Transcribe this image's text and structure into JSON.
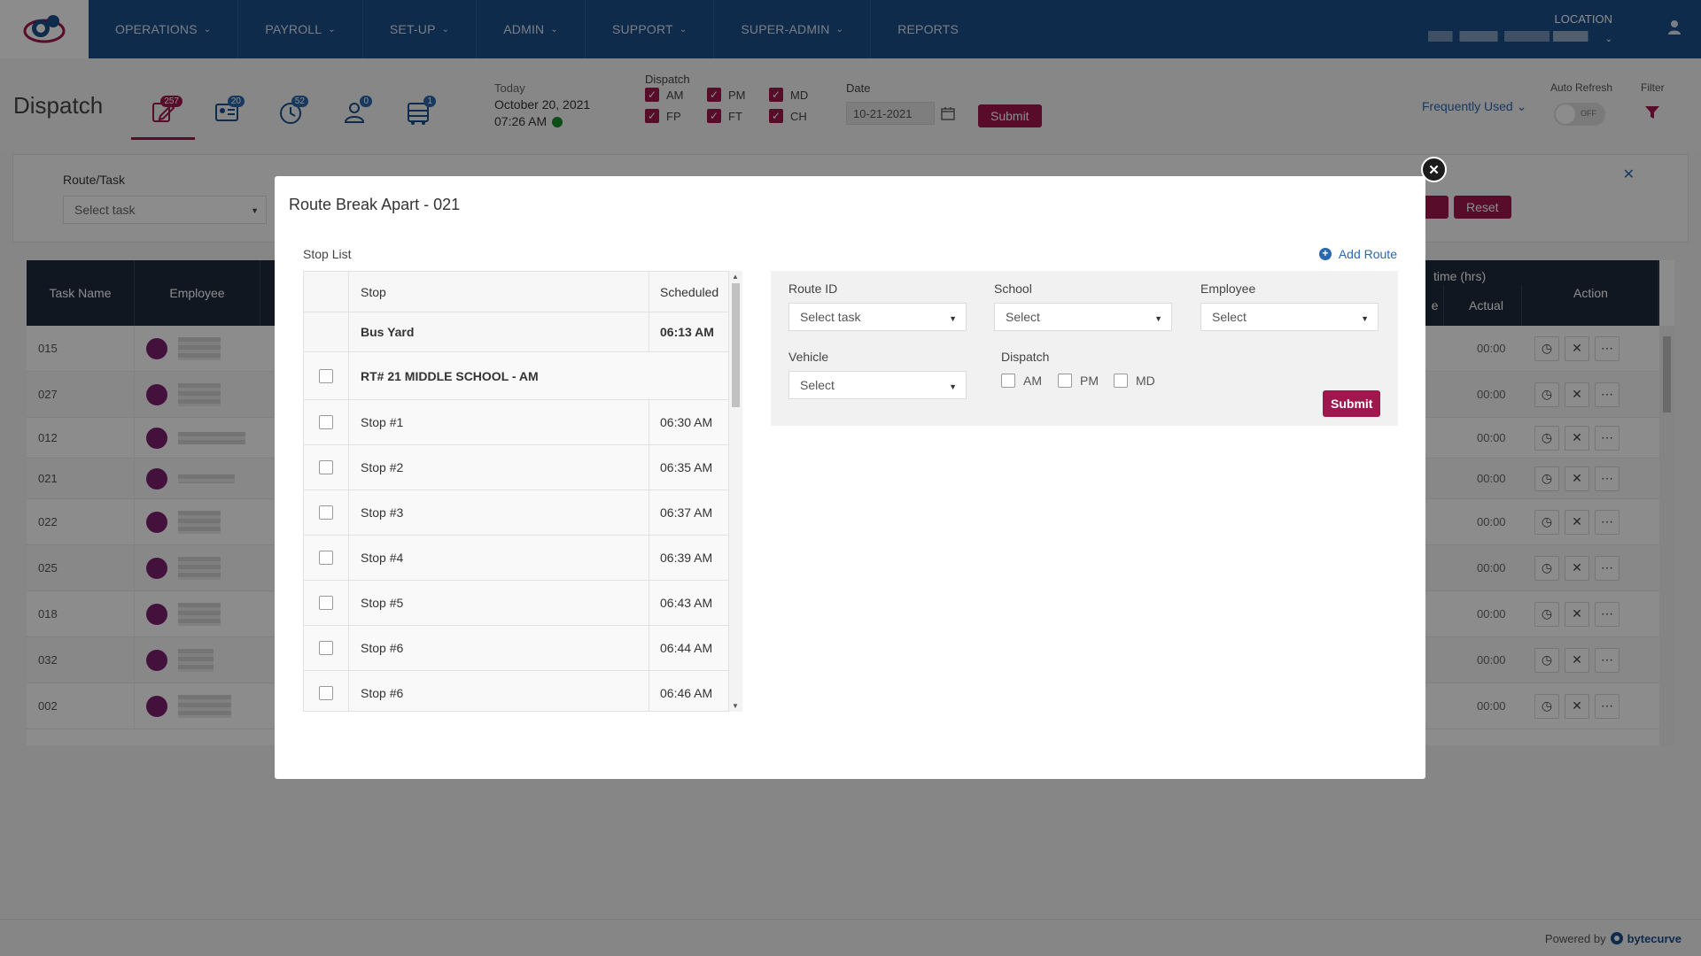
{
  "nav": {
    "items": [
      {
        "label": "OPERATIONS",
        "has_dropdown": true
      },
      {
        "label": "PAYROLL",
        "has_dropdown": true
      },
      {
        "label": "SET-UP",
        "has_dropdown": true
      },
      {
        "label": "ADMIN",
        "has_dropdown": true
      },
      {
        "label": "SUPPORT",
        "has_dropdown": true
      },
      {
        "label": "SUPER-ADMIN",
        "has_dropdown": true
      },
      {
        "label": "REPORTS",
        "has_dropdown": false
      }
    ],
    "location_label": "LOCATION"
  },
  "header": {
    "title": "Dispatch",
    "tab_badges": [
      "257",
      "20",
      "52",
      "0",
      "1"
    ],
    "today_label": "Today",
    "today_date": "October 20, 2021",
    "today_time": "07:26 AM",
    "dispatch_label": "Dispatch",
    "dispatch_options": [
      "AM",
      "PM",
      "MD",
      "FP",
      "FT",
      "CH"
    ],
    "date_label": "Date",
    "date_value": "10-21-2021",
    "submit_label": "Submit",
    "frequently_used": "Frequently Used",
    "auto_refresh_label": "Auto Refresh",
    "auto_refresh_state": "OFF",
    "filter_label": "Filter"
  },
  "filter_panel": {
    "route_task_label": "Route/Task",
    "route_task_placeholder": "Select task",
    "reset_label": "Reset"
  },
  "table": {
    "headers": {
      "task_name": "Task Name",
      "employee": "Employee",
      "time": "time (hrs)",
      "e": "e",
      "actual": "Actual",
      "action": "Action"
    },
    "rows": [
      {
        "task": "015",
        "actual": "00:00"
      },
      {
        "task": "027",
        "actual": "00:00"
      },
      {
        "task": "012",
        "actual": "00:00"
      },
      {
        "task": "021",
        "actual": "00:00"
      },
      {
        "task": "022",
        "actual": "00:00"
      },
      {
        "task": "025",
        "actual": "00:00"
      },
      {
        "task": "018",
        "actual": "00:00"
      },
      {
        "task": "032",
        "actual": "00:00"
      },
      {
        "task": "002",
        "actual": "00:00"
      }
    ]
  },
  "modal": {
    "title": "Route Break Apart - 021",
    "stop_list_label": "Stop List",
    "add_route_label": "Add Route",
    "stop_table": {
      "col_stop": "Stop",
      "col_scheduled": "Scheduled",
      "bus_yard": {
        "name": "Bus Yard",
        "time": "06:13 AM"
      },
      "school": "RT# 21 MIDDLE SCHOOL - AM",
      "stops": [
        {
          "name": "Stop #1",
          "time": "06:30 AM"
        },
        {
          "name": "Stop #2",
          "time": "06:35 AM"
        },
        {
          "name": "Stop #3",
          "time": "06:37 AM"
        },
        {
          "name": "Stop #4",
          "time": "06:39 AM"
        },
        {
          "name": "Stop #5",
          "time": "06:43 AM"
        },
        {
          "name": "Stop #6",
          "time": "06:44 AM"
        },
        {
          "name": "Stop #6",
          "time": "06:46 AM"
        }
      ]
    },
    "form": {
      "route_id_label": "Route ID",
      "route_id_placeholder": "Select task",
      "school_label": "School",
      "school_placeholder": "Select",
      "employee_label": "Employee",
      "employee_placeholder": "Select",
      "vehicle_label": "Vehicle",
      "vehicle_placeholder": "Select",
      "dispatch_label": "Dispatch",
      "dispatch_options": [
        "AM",
        "PM",
        "MD"
      ],
      "submit_label": "Submit"
    }
  },
  "footer": {
    "powered_by": "Powered by",
    "brand": "bytecurve"
  },
  "colors": {
    "nav_bg": "#1b4f8a",
    "accent": "#a0174e",
    "link": "#2a69b0",
    "table_head": "#1f2b3d"
  }
}
